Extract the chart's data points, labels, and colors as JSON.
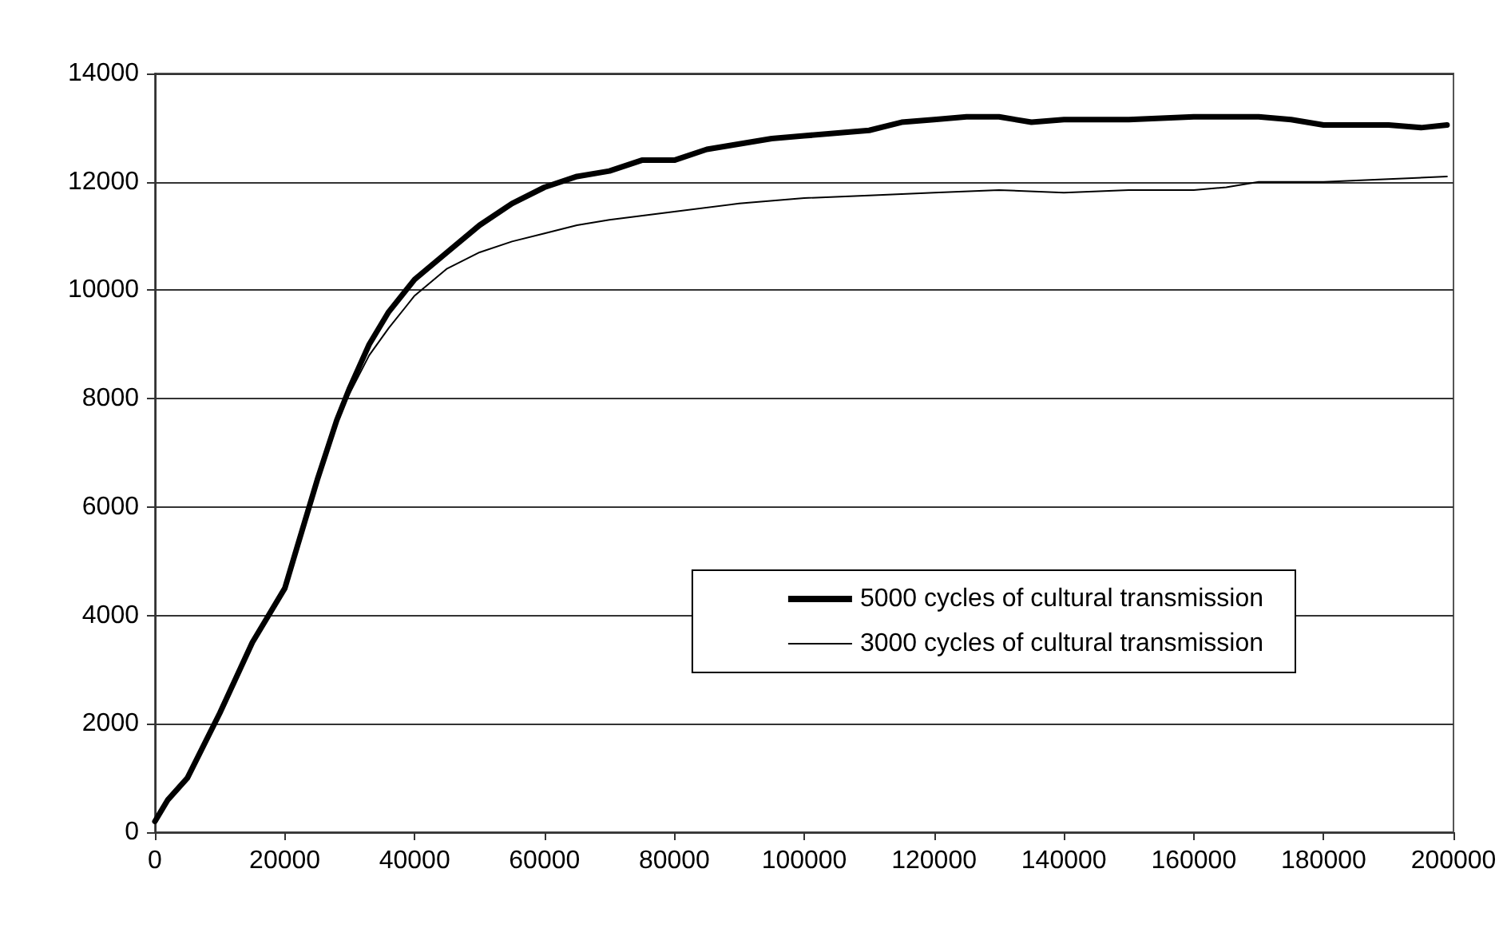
{
  "chart_data": {
    "type": "line",
    "xlim": [
      0,
      200000
    ],
    "xticks": [
      0,
      20000,
      40000,
      60000,
      80000,
      100000,
      120000,
      140000,
      160000,
      180000,
      200000
    ],
    "ylim": [
      0,
      14000
    ],
    "yticks": [
      0,
      2000,
      4000,
      6000,
      8000,
      10000,
      12000,
      14000
    ],
    "grid": "y",
    "legend": "bottom right",
    "marker": "none",
    "line_style": "solid",
    "series": [
      {
        "name": "5000 cycles of cultural transmission",
        "color": "#000000",
        "x": [
          0,
          2000,
          5000,
          10000,
          15000,
          20000,
          22000,
          25000,
          28000,
          30000,
          33000,
          36000,
          40000,
          45000,
          50000,
          55000,
          60000,
          65000,
          70000,
          75000,
          80000,
          85000,
          90000,
          95000,
          100000,
          110000,
          115000,
          120000,
          125000,
          130000,
          135000,
          140000,
          150000,
          160000,
          170000,
          175000,
          180000,
          190000,
          195000,
          199000
        ],
        "values": [
          200,
          600,
          1000,
          2200,
          3500,
          4500,
          5300,
          6500,
          7600,
          8200,
          9000,
          9600,
          10200,
          10700,
          11200,
          11600,
          11900,
          12100,
          12200,
          12400,
          12400,
          12600,
          12700,
          12800,
          12850,
          12950,
          13100,
          13150,
          13200,
          13200,
          13100,
          13150,
          13150,
          13200,
          13200,
          13150,
          13050,
          13050,
          13000,
          13050
        ]
      },
      {
        "name": "3000 cycles of cultural transmission",
        "color": "#000000",
        "x": [
          0,
          2000,
          5000,
          10000,
          15000,
          20000,
          22000,
          25000,
          28000,
          30000,
          33000,
          36000,
          40000,
          45000,
          50000,
          55000,
          60000,
          65000,
          70000,
          80000,
          90000,
          100000,
          110000,
          120000,
          130000,
          140000,
          150000,
          160000,
          165000,
          170000,
          180000,
          190000,
          199000
        ],
        "values": [
          200,
          600,
          1000,
          2200,
          3500,
          4500,
          5300,
          6500,
          7600,
          8100,
          8800,
          9300,
          9900,
          10400,
          10700,
          10900,
          11050,
          11200,
          11300,
          11450,
          11600,
          11700,
          11750,
          11800,
          11850,
          11800,
          11850,
          11850,
          11900,
          12000,
          12000,
          12050,
          12100
        ]
      }
    ]
  }
}
